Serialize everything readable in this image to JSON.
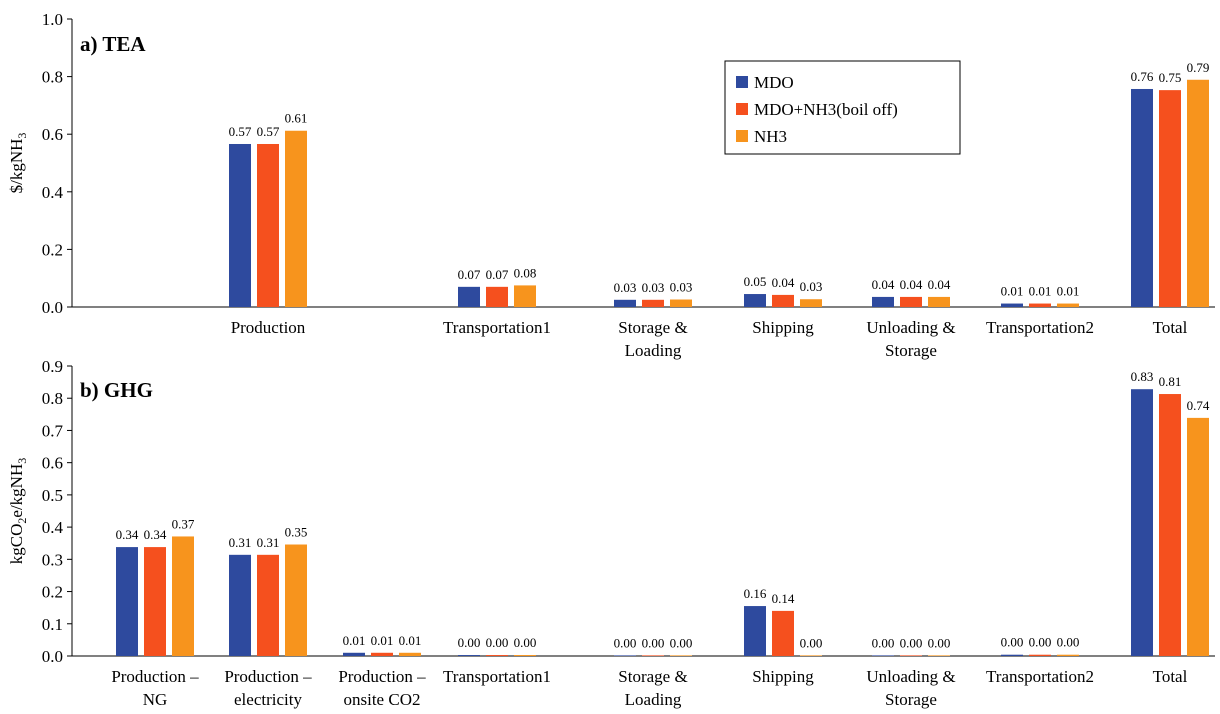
{
  "colors": {
    "MDO": "#2E4A9E",
    "MDO+NH3(boil off)": "#F5501E",
    "NH3": "#F7941D"
  },
  "chart_data": [
    {
      "type": "bar",
      "panel_label": "a) TEA",
      "ylabel_main": "$/kgNH",
      "ylabel_sub": "3",
      "ylim": [
        0,
        1.0
      ],
      "yticks": [
        "0.0",
        "0.2",
        "0.4",
        "0.6",
        "0.8",
        "1.0"
      ],
      "categories": [
        {
          "line1": "",
          "line2": ""
        },
        {
          "line1": "Production",
          "line2": ""
        },
        {
          "line1": "",
          "line2": ""
        },
        {
          "line1": "Transportation1",
          "line2": ""
        },
        {
          "line1": "Storage &",
          "line2": "Loading"
        },
        {
          "line1": "Shipping",
          "line2": ""
        },
        {
          "line1": "Unloading &",
          "line2": "Storage"
        },
        {
          "line1": "Transportation2",
          "line2": ""
        },
        {
          "line1": "Total",
          "line2": ""
        }
      ],
      "series": [
        {
          "name": "MDO",
          "values": [
            null,
            0.566,
            null,
            0.07,
            0.025,
            0.045,
            0.035,
            0.012,
            0.757
          ],
          "labels": [
            "",
            "0.57",
            "",
            "0.07",
            "0.03",
            "0.05",
            "0.04",
            "0.01",
            "0.76"
          ]
        },
        {
          "name": "MDO+NH3(boil off)",
          "values": [
            null,
            0.566,
            null,
            0.07,
            0.025,
            0.042,
            0.035,
            0.012,
            0.753
          ],
          "labels": [
            "",
            "0.57",
            "",
            "0.07",
            "0.03",
            "0.04",
            "0.04",
            "0.01",
            "0.75"
          ]
        },
        {
          "name": "NH3",
          "values": [
            null,
            0.612,
            null,
            0.075,
            0.026,
            0.027,
            0.035,
            0.012,
            0.789
          ],
          "labels": [
            "",
            "0.61",
            "",
            "0.08",
            "0.03",
            "0.03",
            "0.04",
            "0.01",
            "0.79"
          ]
        }
      ],
      "legend": [
        "MDO",
        "MDO+NH3(boil off)",
        "NH3"
      ],
      "legend_position": "top-center",
      "grid": false
    },
    {
      "type": "bar",
      "panel_label": "b) GHG",
      "ylabel_main": "kgCO",
      "ylabel_sub": "2",
      "ylabel_mid": "e/kgNH",
      "ylabel_sub2": "3",
      "ylim": [
        0,
        0.9
      ],
      "yticks": [
        "0.0",
        "0.1",
        "0.2",
        "0.3",
        "0.4",
        "0.5",
        "0.6",
        "0.7",
        "0.8",
        "0.9"
      ],
      "categories": [
        {
          "line1": "Production –",
          "line2": "NG"
        },
        {
          "line1": "Production –",
          "line2": "electricity"
        },
        {
          "line1": "Production –",
          "line2": "onsite CO2"
        },
        {
          "line1": "Transportation1",
          "line2": ""
        },
        {
          "line1": "Storage &",
          "line2": "Loading"
        },
        {
          "line1": "Shipping",
          "line2": ""
        },
        {
          "line1": "Unloading &",
          "line2": "Storage"
        },
        {
          "line1": "Transportation2",
          "line2": ""
        },
        {
          "line1": "Total",
          "line2": ""
        }
      ],
      "series": [
        {
          "name": "MDO",
          "values": [
            0.338,
            0.314,
            0.01,
            0.003,
            0.001,
            0.155,
            0.001,
            0.004,
            0.828
          ],
          "labels": [
            "0.34",
            "0.31",
            "0.01",
            "0.00",
            "0.00",
            "0.16",
            "0.00",
            "0.00",
            "0.83"
          ]
        },
        {
          "name": "MDO+NH3(boil off)",
          "values": [
            0.338,
            0.314,
            0.01,
            0.003,
            0.001,
            0.14,
            0.001,
            0.004,
            0.813
          ],
          "labels": [
            "0.34",
            "0.31",
            "0.01",
            "0.00",
            "0.00",
            "0.14",
            "0.00",
            "0.00",
            "0.81"
          ]
        },
        {
          "name": "NH3",
          "values": [
            0.371,
            0.346,
            0.01,
            0.003,
            0.001,
            0.0,
            0.001,
            0.004,
            0.739
          ],
          "labels": [
            "0.37",
            "0.35",
            "0.01",
            "0.00",
            "0.00",
            "0.00",
            "0.00",
            "0.00",
            "0.74"
          ]
        }
      ],
      "grid": false
    }
  ]
}
